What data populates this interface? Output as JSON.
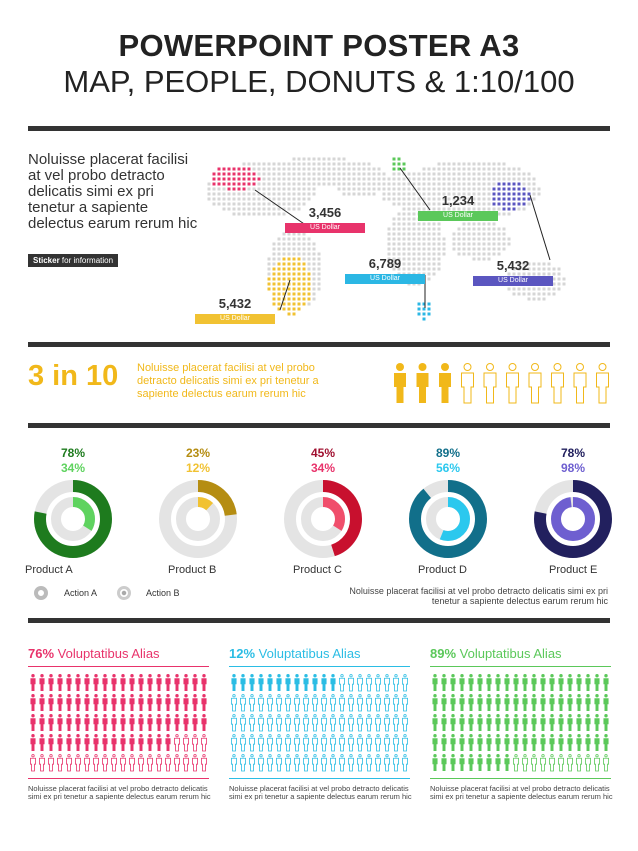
{
  "header": {
    "title": "POWERPOINT POSTER A3",
    "subtitle": "MAP, PEOPLE, DONUTS & 1:10/100"
  },
  "intro": {
    "text": "Noluisse placerat facilisi at vel probo detracto delicatis simi ex pri tenetur a sapiente delectus earum rerum hic",
    "sticker_bold": "Sticker",
    "sticker_text": " for information"
  },
  "map_labels": [
    {
      "value": "3,456",
      "unit": "US Dollar",
      "color": "#E8336B"
    },
    {
      "value": "1,234",
      "unit": "US Dollar",
      "color": "#5BC85A"
    },
    {
      "value": "6,789",
      "unit": "US Dollar",
      "color": "#2BB7E4"
    },
    {
      "value": "5,432",
      "unit": "US Dollar",
      "color": "#5B56C0"
    },
    {
      "value": "5,432",
      "unit": "US Dollar",
      "color": "#F1C232"
    }
  ],
  "ratio": {
    "headline": "3 in 10",
    "text": "Noluisse placerat facilisi at vel probo detracto delicatis simi ex pri tenetur a sapiente delectus earum rerum hic",
    "filled": 3,
    "total": 10,
    "color": "#F1B81A"
  },
  "donuts": [
    {
      "product": "Product A",
      "a": 78,
      "b": 34,
      "a_label": "78%",
      "b_label": "34%",
      "outer": "#1E7B1E",
      "inner": "#5FD35F",
      "a_text": "#1E7B1E",
      "b_text": "#5FD35F"
    },
    {
      "product": "Product B",
      "a": 23,
      "b": 12,
      "a_label": "23%",
      "b_label": "12%",
      "outer": "#B58D12",
      "inner": "#F1C232",
      "a_text": "#B58D12",
      "b_text": "#F1C232"
    },
    {
      "product": "Product C",
      "a": 45,
      "b": 34,
      "a_label": "45%",
      "b_label": "34%",
      "outer": "#C8102E",
      "inner": "#F04E6B",
      "a_text": "#A01030",
      "b_text": "#E8336B"
    },
    {
      "product": "Product D",
      "a": 89,
      "b": 56,
      "a_label": "89%",
      "b_label": "56%",
      "outer": "#116F8A",
      "inner": "#2BC8EE",
      "a_text": "#116F8A",
      "b_text": "#2BC8EE"
    },
    {
      "product": "Product E",
      "a": 78,
      "b": 98,
      "a_label": "78%",
      "b_label": "98%",
      "outer": "#22205E",
      "inner": "#6E5FD0",
      "a_text": "#22205E",
      "b_text": "#6E5FD0"
    }
  ],
  "legend": {
    "action_a": "Action A",
    "action_b": "Action B",
    "note": "Noluisse placerat facilisi at vel probo detracto delicatis simi ex pri tenetur a sapiente delectus earum rerum hic"
  },
  "columns": [
    {
      "pct": "76%",
      "label": " Voluptatibus Alias",
      "value": 76,
      "color": "#E8336B",
      "note": "Noluisse placerat facilisi at vel probo detracto delicatis simi ex pri tenetur a sapiente delectus earum rerum hic"
    },
    {
      "pct": "12%",
      "label": " Voluptatibus Alias",
      "value": 12,
      "color": "#2BBDE4",
      "note": "Noluisse placerat facilisi at vel probo detracto delicatis simi ex pri tenetur a sapiente delectus earum rerum hic"
    },
    {
      "pct": "89%",
      "label": " Voluptatibus Alias",
      "value": 89,
      "color": "#5BC85A",
      "note": "Noluisse placerat facilisi at vel probo detracto delicatis simi ex pri tenetur a sapiente delectus earum rerum hic"
    }
  ]
}
